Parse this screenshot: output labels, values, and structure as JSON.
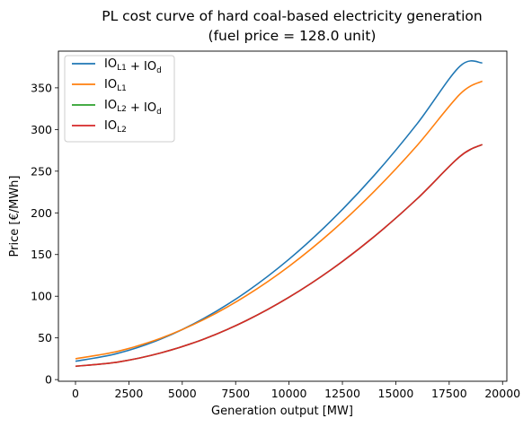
{
  "chart_data": {
    "type": "line",
    "title_line1": "PL cost curve of hard coal-based electricity generation",
    "title_line2": "(fuel price = 128.0 unit)",
    "xlabel": "Generation output [MW]",
    "ylabel": "Price [€/MWh]",
    "xlim": [
      -800,
      20200
    ],
    "ylim": [
      -2,
      394
    ],
    "xticks": [
      0,
      2500,
      5000,
      7500,
      10000,
      12500,
      15000,
      17500,
      20000
    ],
    "yticks": [
      0,
      50,
      100,
      150,
      200,
      250,
      300,
      350
    ],
    "grid": false,
    "legend_position": "upper left",
    "series": [
      {
        "name_main": "IO",
        "name_sub": "L1",
        "name_rest": " + IO",
        "name_sub2": "d",
        "color": "#1f77b4",
        "x": [
          0,
          2000,
          4000,
          6000,
          8000,
          10000,
          12000,
          14000,
          16000,
          18000,
          19050
        ],
        "y": [
          22,
          31.6,
          48.7,
          73.2,
          105.1,
          144.4,
          191.2,
          245.3,
          306.9,
          375.8,
          380
        ]
      },
      {
        "name_main": "IO",
        "name_sub": "L1",
        "name_rest": "",
        "name_sub2": "",
        "color": "#ff7f0e",
        "x": [
          0,
          2000,
          4000,
          6000,
          8000,
          10000,
          12000,
          14000,
          16000,
          18000,
          19050
        ],
        "y": [
          25,
          34,
          49.7,
          71.9,
          100.7,
          135.9,
          177.7,
          226.1,
          280.9,
          342.3,
          358
        ]
      },
      {
        "name_main": "IO",
        "name_sub": "L2",
        "name_rest": " + IO",
        "name_sub2": "d",
        "color": "#2ca02c",
        "x": [
          0,
          2000,
          4000,
          6000,
          8000,
          10000,
          12000,
          14000,
          16000,
          18000,
          19050
        ],
        "y": [
          16,
          21.1,
          32,
          48.5,
          70.8,
          98.8,
          132.4,
          171.8,
          216.9,
          267.6,
          282
        ]
      },
      {
        "name_main": "IO",
        "name_sub": "L2",
        "name_rest": "",
        "name_sub2": "",
        "color": "#d62728",
        "x": [
          0,
          2000,
          4000,
          6000,
          8000,
          10000,
          12000,
          14000,
          16000,
          18000,
          19050
        ],
        "y": [
          16,
          21.1,
          32,
          48.5,
          70.8,
          98.8,
          132.4,
          171.8,
          216.9,
          267.6,
          282
        ]
      }
    ]
  }
}
